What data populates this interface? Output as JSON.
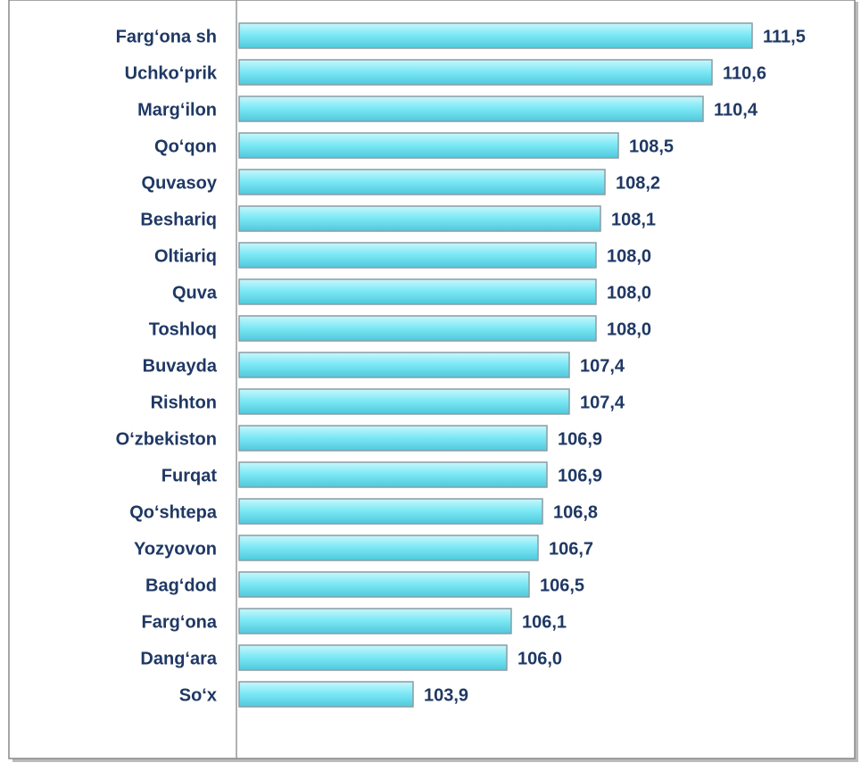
{
  "chart_data": {
    "type": "barh",
    "categories": [
      "Farg‘ona sh",
      "Uchko‘prik",
      "Marg‘ilon",
      "Qo‘qon",
      "Quvasoy",
      "Beshariq",
      "Oltiariq",
      "Quva",
      "Toshloq",
      "Buvayda",
      "Rishton",
      "O‘zbekiston",
      "Furqat",
      "Qo‘shtepa",
      "Yozyovon",
      "Bag‘dod",
      "Farg‘ona ",
      "Dang‘ara",
      "So‘x"
    ],
    "values": [
      111.5,
      110.6,
      110.4,
      108.5,
      108.2,
      108.1,
      108.0,
      108.0,
      108.0,
      107.4,
      107.4,
      106.9,
      106.9,
      106.8,
      106.7,
      106.5,
      106.1,
      106.0,
      103.9
    ],
    "value_labels": [
      "111,5",
      "110,6",
      "110,4",
      "108,5",
      "108,2",
      "108,1",
      "108,0",
      "108,0",
      "108,0",
      "107,4",
      "107,4",
      "106,9",
      "106,9",
      "106,8",
      "106,7",
      "106,5",
      "106,1",
      "106,0",
      "103,9"
    ],
    "color": "#7fe9f6",
    "xlim": [
      100,
      113.8
    ]
  }
}
